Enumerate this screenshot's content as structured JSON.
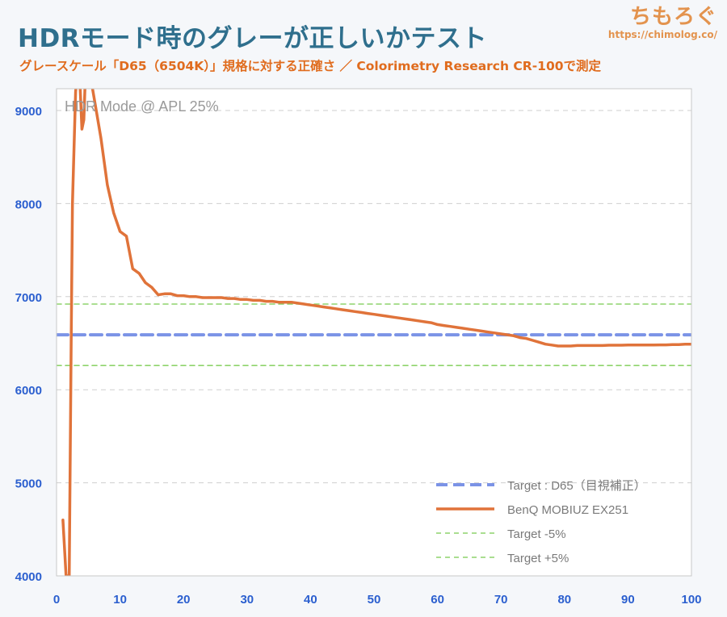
{
  "header": {
    "title": "HDRモード時のグレーが正しいかテスト",
    "subtitle": "グレースケール「D65（6504K）」規格に対する正確さ ／ Colorimetry Research CR-100で測定"
  },
  "brand": {
    "name": "ちもろぐ",
    "url": "https://chimolog.co/"
  },
  "chart_data": {
    "type": "line",
    "annotation": "HDR Mode @ APL 25%",
    "xlim": [
      0,
      100
    ],
    "ylim": [
      4000,
      9200
    ],
    "x_ticks": [
      "0",
      "10",
      "20",
      "30",
      "40",
      "50",
      "60",
      "70",
      "80",
      "90",
      "100"
    ],
    "y_ticks": [
      "4000",
      "5000",
      "6000",
      "7000",
      "8000",
      "9000"
    ],
    "grid": "horizontal dashed",
    "legend_position": "bottom-right",
    "colors": {
      "target_d65": "#7b93e6",
      "benq": "#e0733a",
      "target_band": "#8ed36b",
      "y_tick_color": "#2b5fcf",
      "x_tick_color": "#2b5fcf"
    },
    "series": [
      {
        "name": "Target : D65（目視補正）",
        "style": "dashed-thick",
        "x": [
          0,
          100
        ],
        "values": [
          6590,
          6590
        ]
      },
      {
        "name": "BenQ MOBIUZ EX251",
        "style": "solid",
        "x": [
          1,
          1.5,
          2,
          2.3,
          2.5,
          3,
          3.5,
          4,
          4.3,
          4.6,
          5,
          6,
          7,
          8,
          9,
          10,
          11,
          12,
          13,
          14,
          15,
          16,
          17,
          18,
          19,
          20,
          21,
          22,
          23,
          24,
          25,
          26,
          27,
          28,
          29,
          30,
          31,
          32,
          33,
          34,
          35,
          36,
          37,
          38,
          39,
          40,
          41,
          42,
          43,
          44,
          45,
          46,
          47,
          48,
          49,
          50,
          51,
          52,
          53,
          54,
          55,
          56,
          57,
          58,
          59,
          60,
          61,
          62,
          63,
          64,
          65,
          66,
          67,
          68,
          69,
          70,
          71,
          72,
          73,
          74,
          75,
          76,
          77,
          78,
          79,
          80,
          81,
          82,
          83,
          84,
          85,
          86,
          87,
          88,
          89,
          90,
          91,
          92,
          93,
          94,
          95,
          96,
          97,
          98,
          99,
          100
        ],
        "values": [
          4600,
          4000,
          4000,
          6500,
          8000,
          9200,
          9600,
          8800,
          8900,
          9500,
          9500,
          9100,
          8700,
          8200,
          7900,
          7700,
          7650,
          7300,
          7250,
          7150,
          7100,
          7020,
          7030,
          7030,
          7010,
          7010,
          7000,
          7000,
          6990,
          6990,
          6990,
          6990,
          6980,
          6980,
          6970,
          6970,
          6960,
          6960,
          6950,
          6950,
          6940,
          6940,
          6940,
          6930,
          6920,
          6910,
          6900,
          6890,
          6880,
          6870,
          6860,
          6850,
          6840,
          6830,
          6820,
          6810,
          6800,
          6790,
          6780,
          6770,
          6760,
          6750,
          6740,
          6730,
          6720,
          6700,
          6690,
          6680,
          6670,
          6660,
          6650,
          6640,
          6630,
          6620,
          6610,
          6600,
          6590,
          6580,
          6560,
          6550,
          6530,
          6510,
          6490,
          6480,
          6470,
          6470,
          6470,
          6475,
          6475,
          6475,
          6475,
          6475,
          6478,
          6478,
          6478,
          6480,
          6480,
          6480,
          6480,
          6480,
          6482,
          6482,
          6485,
          6485,
          6490,
          6490
        ]
      },
      {
        "name": "Target -5%",
        "style": "dashed-thin",
        "x": [
          0,
          100
        ],
        "values": [
          6260,
          6260
        ]
      },
      {
        "name": "Target +5%",
        "style": "dashed-thin",
        "x": [
          0,
          100
        ],
        "values": [
          6920,
          6920
        ]
      }
    ]
  }
}
